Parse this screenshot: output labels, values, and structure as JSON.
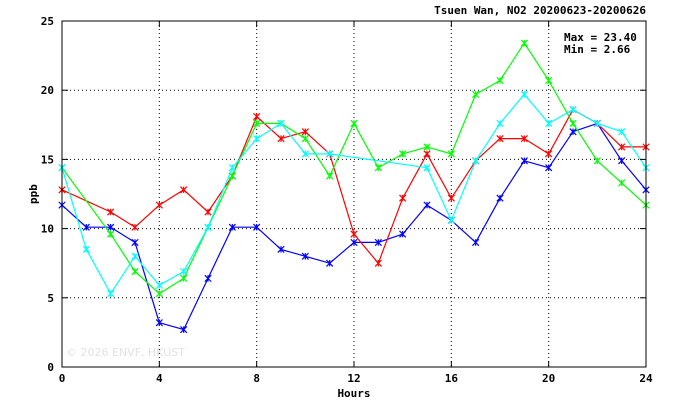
{
  "chart_data": {
    "type": "line",
    "title": "Tsuen Wan, NO2 20200623-20200626",
    "xlabel": "Hours",
    "ylabel": "ppb",
    "xlim": [
      0,
      24
    ],
    "ylim": [
      0,
      25
    ],
    "x_ticks": [
      "0",
      "4",
      "8",
      "12",
      "16",
      "20",
      "24"
    ],
    "y_ticks": [
      "0",
      "5",
      "10",
      "15",
      "20",
      "25"
    ],
    "grid": true,
    "stats": {
      "max_label": "Max = 23.40",
      "min_label": "Min =  2.66"
    },
    "watermark": "© 2026  ENVF, HKUST",
    "x": [
      0,
      1,
      2,
      3,
      4,
      5,
      6,
      7,
      8,
      9,
      10,
      11,
      12,
      13,
      14,
      15,
      16,
      17,
      18,
      19,
      20,
      21,
      22,
      23,
      24
    ],
    "series": [
      {
        "color": "#0000ff",
        "values": [
          11.7,
          10.1,
          10.1,
          9.0,
          3.2,
          2.7,
          6.4,
          10.1,
          10.1,
          8.5,
          8.0,
          7.5,
          9.0,
          9.0,
          9.6,
          11.7,
          10.6,
          9.0,
          12.2,
          14.9,
          14.4,
          17.0,
          17.6,
          14.9,
          12.8
        ]
      },
      {
        "color": "#ff0000",
        "values": [
          12.8,
          null,
          11.2,
          10.1,
          11.7,
          12.8,
          11.2,
          13.8,
          18.1,
          16.5,
          17.0,
          15.4,
          9.6,
          7.5,
          12.2,
          15.4,
          12.2,
          14.9,
          16.5,
          16.5,
          15.4,
          18.6,
          17.6,
          15.9,
          15.9
        ]
      },
      {
        "color": "#00ff00",
        "values": [
          14.4,
          null,
          9.6,
          6.9,
          5.3,
          6.4,
          10.1,
          13.8,
          17.6,
          17.6,
          16.5,
          13.8,
          17.6,
          14.4,
          15.4,
          15.9,
          15.4,
          19.7,
          20.7,
          23.4,
          20.7,
          17.6,
          14.9,
          13.3,
          11.7
        ]
      },
      {
        "color": "#00ffff",
        "values": [
          14.4,
          8.5,
          5.3,
          8.0,
          5.9,
          6.9,
          10.1,
          14.4,
          16.5,
          17.6,
          15.4,
          15.4,
          null,
          null,
          null,
          14.4,
          10.6,
          14.9,
          17.6,
          19.7,
          17.6,
          18.6,
          17.6,
          17.0,
          14.4
        ]
      }
    ]
  }
}
